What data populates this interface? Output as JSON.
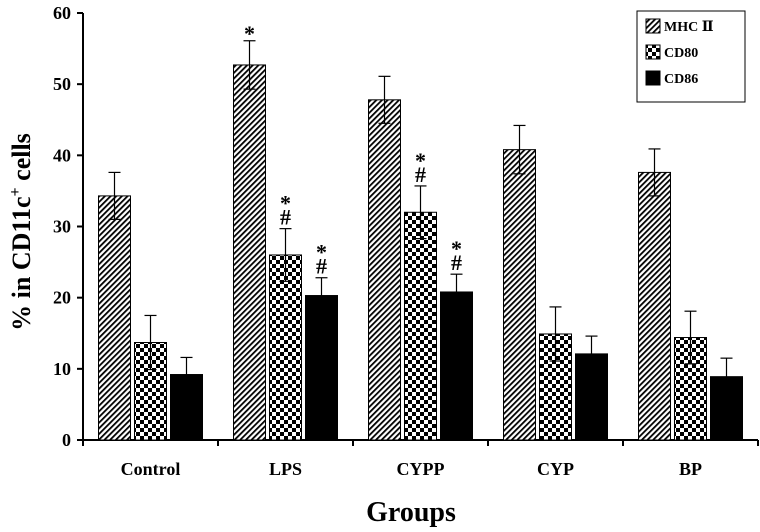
{
  "chart_data": {
    "type": "bar",
    "title": "",
    "xlabel": "Groups",
    "ylabel_main": "% in CD11c",
    "ylabel_sup": "+",
    "ylabel_tail": " cells",
    "ylim": [
      0,
      60
    ],
    "yticks": [
      "0",
      "10",
      "20",
      "30",
      "40",
      "50",
      "60"
    ],
    "categories": [
      "Control",
      "LPS",
      "CYPP",
      "CYP",
      "BP"
    ],
    "series": [
      {
        "name": "MHC Ⅱ",
        "pattern": "diagonal-hatch",
        "values": [
          34.3,
          52.7,
          47.8,
          40.8,
          37.6
        ],
        "errors": [
          3.3,
          3.4,
          3.3,
          3.4,
          3.3
        ]
      },
      {
        "name": "CD80",
        "pattern": "checker",
        "values": [
          13.7,
          26.0,
          32.0,
          14.9,
          14.4
        ],
        "errors": [
          3.8,
          3.7,
          3.7,
          3.8,
          3.7
        ]
      },
      {
        "name": "CD86",
        "pattern": "solid",
        "values": [
          9.2,
          20.3,
          20.8,
          12.1,
          8.9
        ],
        "errors": [
          2.4,
          2.5,
          2.5,
          2.5,
          2.6
        ]
      }
    ],
    "annotations": [
      {
        "category": "LPS",
        "series": "MHC Ⅱ",
        "marks": [
          "*"
        ]
      },
      {
        "category": "LPS",
        "series": "CD80",
        "marks": [
          "*",
          "#"
        ]
      },
      {
        "category": "LPS",
        "series": "CD86",
        "marks": [
          "*",
          "#"
        ]
      },
      {
        "category": "CYPP",
        "series": "CD80",
        "marks": [
          "*",
          "#"
        ]
      },
      {
        "category": "CYPP",
        "series": "CD86",
        "marks": [
          "*",
          "#"
        ]
      }
    ],
    "legend_position": "top-right",
    "grid": false
  },
  "colors": {
    "bar_fill": "#000000",
    "axis": "#000000",
    "background": "#ffffff"
  }
}
